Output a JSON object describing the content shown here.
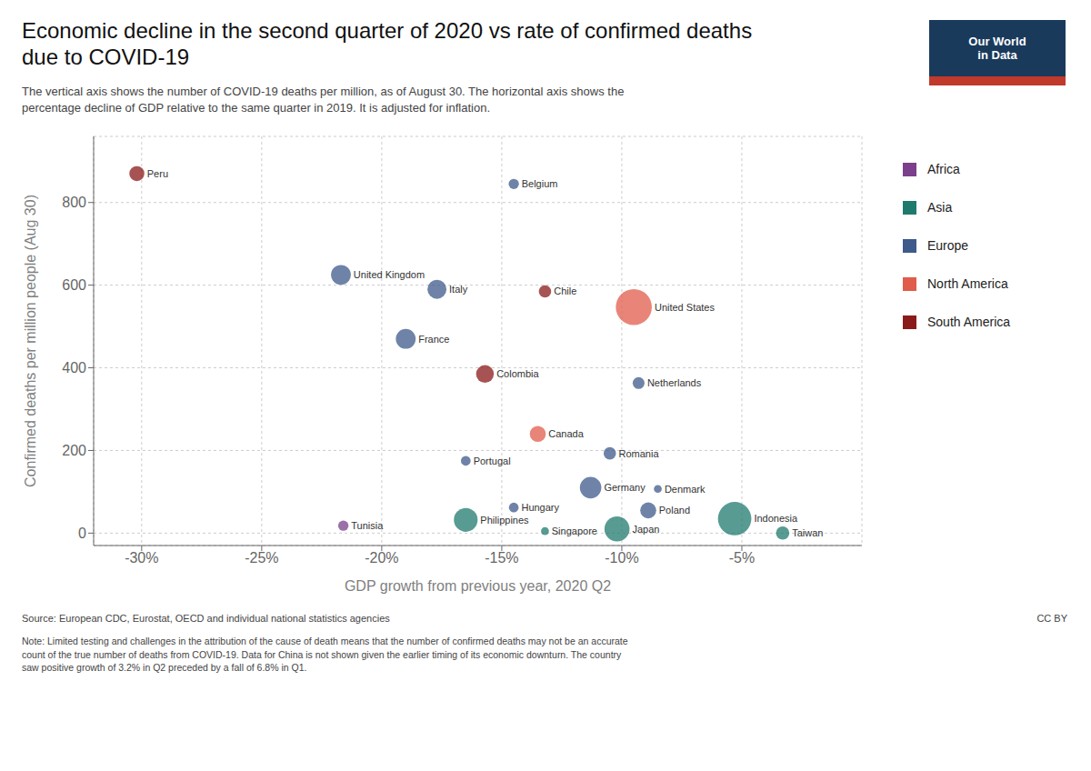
{
  "chart_data": {
    "type": "scatter",
    "title": "Economic decline in the second quarter of 2020 vs rate of confirmed deaths\ndue to COVID-19",
    "subtitle": "The vertical axis shows the number of COVID-19 deaths per million, as of August 30. The horizontal axis shows the\npercentage decline of GDP relative to the same quarter in 2019. It is adjusted for inflation.",
    "xlabel": "GDP growth from previous year, 2020 Q2",
    "ylabel": "Confirmed deaths per million people (Aug 30)",
    "annotations": {
      "source": "Source: European CDC, Eurostat, OECD and individual national statistics agencies",
      "cc_by": "CC BY",
      "note": "Note: Limited testing and challenges in the attribution of the cause of death means that the number of confirmed deaths may not be an accurate\ncount of the true number of deaths from COVID-19. Data for China is not shown given the earlier timing of its economic downturn. The country\nsaw positive growth of 3.2% in Q2 preceded by a fall of 6.8% in Q1.",
      "logo": {
        "text": [
          "Our World",
          "in Data"
        ],
        "color": "#1a3a5c",
        "stripe_color": "#c0392b"
      }
    },
    "xlim": [
      -32,
      0
    ],
    "ylim": [
      -30,
      960
    ],
    "xticks": [
      {
        "value": -30,
        "label": "-30%"
      },
      {
        "value": -25,
        "label": "-25%"
      },
      {
        "value": -20,
        "label": "-20%"
      },
      {
        "value": -15,
        "label": "-15%"
      },
      {
        "value": -10,
        "label": "-10%"
      },
      {
        "value": -5,
        "label": "-5%"
      }
    ],
    "yticks": [
      0,
      200,
      400,
      600,
      800
    ],
    "grid": true,
    "legend": "right",
    "series": [
      {
        "name": "Africa",
        "color": "#7b3f8c",
        "points": [
          {
            "name": "Tunisia",
            "x": -21.6,
            "y": 18,
            "size": 11.8
          }
        ]
      },
      {
        "name": "Asia",
        "color": "#1f7a6e",
        "points": [
          {
            "name": "Philippines",
            "x": -16.5,
            "y": 32,
            "size": 109
          },
          {
            "name": "Japan",
            "x": -10.2,
            "y": 10,
            "size": 126
          },
          {
            "name": "Indonesia",
            "x": -5.3,
            "y": 35,
            "size": 270
          },
          {
            "name": "Singapore",
            "x": -13.2,
            "y": 5,
            "size": 5.8
          },
          {
            "name": "Taiwan",
            "x": -3.3,
            "y": 0.3,
            "size": 23
          }
        ]
      },
      {
        "name": "Europe",
        "color": "#3d5a8a",
        "points": [
          {
            "name": "Belgium",
            "x": -14.5,
            "y": 845,
            "size": 11.5
          },
          {
            "name": "United Kingdom",
            "x": -21.7,
            "y": 625,
            "size": 67
          },
          {
            "name": "Italy",
            "x": -17.7,
            "y": 590,
            "size": 60
          },
          {
            "name": "France",
            "x": -19.0,
            "y": 470,
            "size": 67
          },
          {
            "name": "Netherlands",
            "x": -9.3,
            "y": 363,
            "size": 17
          },
          {
            "name": "Romania",
            "x": -10.5,
            "y": 193,
            "size": 19
          },
          {
            "name": "Portugal",
            "x": -16.5,
            "y": 175,
            "size": 10
          },
          {
            "name": "Germany",
            "x": -11.3,
            "y": 110,
            "size": 83
          },
          {
            "name": "Denmark",
            "x": -8.5,
            "y": 107,
            "size": 5.8
          },
          {
            "name": "Hungary",
            "x": -14.5,
            "y": 62,
            "size": 10
          },
          {
            "name": "Poland",
            "x": -8.9,
            "y": 55,
            "size": 38
          }
        ]
      },
      {
        "name": "North America",
        "color": "#e05c4b",
        "points": [
          {
            "name": "United States",
            "x": -9.5,
            "y": 547,
            "size": 330
          },
          {
            "name": "Canada",
            "x": -13.5,
            "y": 240,
            "size": 38
          }
        ]
      },
      {
        "name": "South America",
        "color": "#8b1a1a",
        "points": [
          {
            "name": "Peru",
            "x": -30.2,
            "y": 870,
            "size": 32
          },
          {
            "name": "Chile",
            "x": -13.2,
            "y": 585,
            "size": 19
          },
          {
            "name": "Colombia",
            "x": -15.7,
            "y": 385,
            "size": 50
          }
        ]
      }
    ]
  }
}
